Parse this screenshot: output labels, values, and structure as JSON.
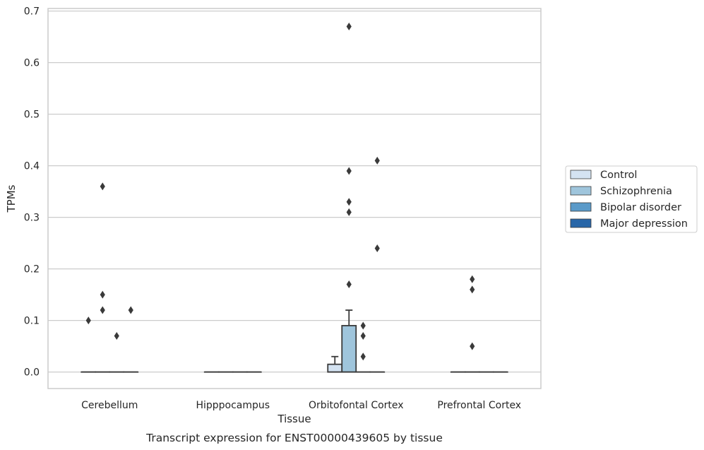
{
  "chart_data": {
    "type": "box",
    "title": "",
    "xlabel": "Tissue",
    "ylabel": "TPMs",
    "caption": "Transcript expression for ENST00000439605 by tissue",
    "ylim": [
      -0.032,
      0.705
    ],
    "yticks": [
      "0.0",
      "0.1",
      "0.2",
      "0.3",
      "0.4",
      "0.5",
      "0.6",
      "0.7"
    ],
    "grid": "horizontal",
    "legend_position": "right",
    "categories": [
      "Cerebellum",
      "Hipppocampus",
      "Orbitofontal Cortex",
      "Prefrontal Cortex"
    ],
    "series": [
      {
        "name": "Control",
        "color": "#d4e3f2",
        "boxes": [
          {
            "q1": 0,
            "median": 0,
            "q3": 0,
            "whisker_low": 0,
            "whisker_high": 0,
            "outliers": [
              0.1
            ]
          },
          {
            "q1": 0,
            "median": 0,
            "q3": 0,
            "whisker_low": 0,
            "whisker_high": 0,
            "outliers": []
          },
          {
            "q1": 0,
            "median": 0,
            "q3": 0.015,
            "whisker_low": 0,
            "whisker_high": 0.03,
            "outliers": []
          },
          {
            "q1": 0,
            "median": 0,
            "q3": 0,
            "whisker_low": 0,
            "whisker_high": 0,
            "outliers": []
          }
        ]
      },
      {
        "name": "Schizophrenia",
        "color": "#9fc5dc",
        "boxes": [
          {
            "q1": 0,
            "median": 0,
            "q3": 0,
            "whisker_low": 0,
            "whisker_high": 0,
            "outliers": [
              0.36,
              0.15,
              0.12
            ]
          },
          {
            "q1": 0,
            "median": 0,
            "q3": 0,
            "whisker_low": 0,
            "whisker_high": 0,
            "outliers": []
          },
          {
            "q1": 0,
            "median": 0,
            "q3": 0.09,
            "whisker_low": 0,
            "whisker_high": 0.12,
            "outliers": [
              0.67,
              0.39,
              0.33,
              0.31,
              0.17
            ]
          },
          {
            "q1": 0,
            "median": 0,
            "q3": 0,
            "whisker_low": 0,
            "whisker_high": 0,
            "outliers": [
              0.18,
              0.16,
              0.05
            ]
          }
        ]
      },
      {
        "name": "Bipolar disorder",
        "color": "#5a9ac9",
        "boxes": [
          {
            "q1": 0,
            "median": 0,
            "q3": 0,
            "whisker_low": 0,
            "whisker_high": 0,
            "outliers": [
              0.07
            ]
          },
          {
            "q1": 0,
            "median": 0,
            "q3": 0,
            "whisker_low": 0,
            "whisker_high": 0,
            "outliers": []
          },
          {
            "q1": 0,
            "median": 0,
            "q3": 0,
            "whisker_low": 0,
            "whisker_high": 0,
            "outliers": [
              0.09,
              0.07,
              0.03
            ]
          },
          {
            "q1": 0,
            "median": 0,
            "q3": 0,
            "whisker_low": 0,
            "whisker_high": 0,
            "outliers": []
          }
        ]
      },
      {
        "name": "Major depression",
        "color": "#2866a8",
        "boxes": [
          {
            "q1": 0,
            "median": 0,
            "q3": 0,
            "whisker_low": 0,
            "whisker_high": 0,
            "outliers": [
              0.12
            ]
          },
          {
            "q1": 0,
            "median": 0,
            "q3": 0,
            "whisker_low": 0,
            "whisker_high": 0,
            "outliers": []
          },
          {
            "q1": 0,
            "median": 0,
            "q3": 0,
            "whisker_low": 0,
            "whisker_high": 0,
            "outliers": [
              0.41,
              0.24
            ]
          },
          {
            "q1": 0,
            "median": 0,
            "q3": 0,
            "whisker_low": 0,
            "whisker_high": 0,
            "outliers": []
          }
        ]
      }
    ]
  }
}
